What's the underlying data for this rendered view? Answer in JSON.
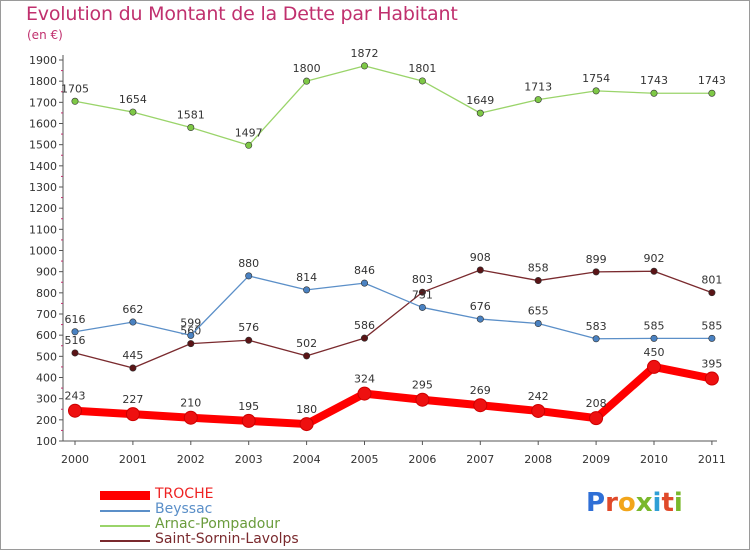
{
  "header": {
    "title": "Evolution du Montant de la Dette par Habitant",
    "subtitle": "(en €)"
  },
  "logo": {
    "letters": [
      "P",
      "r",
      "o",
      "x",
      "i",
      "t",
      "i"
    ],
    "colors": [
      "#2f6fd6",
      "#e04a2a",
      "#f2a51a",
      "#7ab82c",
      "#2f9fd6",
      "#e04a2a",
      "#7ab82c"
    ]
  },
  "chart_data": {
    "type": "line",
    "title": "Evolution du Montant de la Dette par Habitant",
    "ylabel": "(en €)",
    "xlabel": "",
    "x": [
      "2000",
      "2001",
      "2002",
      "2003",
      "2004",
      "2005",
      "2006",
      "2007",
      "2008",
      "2009",
      "2010",
      "2011"
    ],
    "ylim": [
      100,
      1900
    ],
    "yticks": [
      100,
      200,
      300,
      400,
      500,
      600,
      700,
      800,
      900,
      1000,
      1100,
      1200,
      1300,
      1400,
      1500,
      1600,
      1700,
      1800,
      1900
    ],
    "grid": false,
    "legend_position": "bottom-left",
    "series": [
      {
        "name": "Saint-Sornin-Lavolps",
        "color": "#7a2a2e",
        "marker": "#5a1416",
        "values": [
          516,
          445,
          560,
          576,
          502,
          586,
          803,
          908,
          858,
          899,
          902,
          801
        ],
        "labels": [
          "516",
          "445",
          "560",
          "576",
          "502",
          "586",
          "803",
          "908",
          "858",
          "899",
          "902",
          "801"
        ]
      },
      {
        "name": "Beyssac",
        "color": "#5b8fc8",
        "marker": "#4a82c2",
        "values": [
          616,
          662,
          599,
          880,
          814,
          846,
          731,
          676,
          655,
          583,
          585,
          585
        ],
        "labels": [
          "616",
          "662",
          "599",
          "880",
          "814",
          "846",
          "731",
          "676",
          "655",
          "583",
          "585",
          "585"
        ]
      },
      {
        "name": "Arnac-Pompadour",
        "color": "#9ad46a",
        "marker": "#7ec846",
        "values": [
          1705,
          1654,
          1581,
          1497,
          1800,
          1872,
          1801,
          1649,
          1713,
          1754,
          1743,
          1743
        ],
        "labels": [
          "1705",
          "1654",
          "1581",
          "1497",
          "1800",
          "1872",
          "1801",
          "1649",
          "1713",
          "1754",
          "1743",
          "1743"
        ]
      },
      {
        "name": "TROCHE",
        "color": "#ff0000",
        "marker": "#ee1010",
        "values": [
          243,
          227,
          210,
          195,
          180,
          324,
          295,
          269,
          242,
          208,
          450,
          395
        ],
        "labels": [
          "243",
          "227",
          "210",
          "195",
          "180",
          "324",
          "295",
          "269",
          "242",
          "208",
          "450",
          "395"
        ]
      }
    ],
    "legend": [
      {
        "name": "TROCHE",
        "color": "#ff0000",
        "thick": true
      },
      {
        "name": "Beyssac",
        "color": "#5b8fc8",
        "thick": false
      },
      {
        "name": "Arnac-Pompadour",
        "color": "#9ad46a",
        "thick": false
      },
      {
        "name": "Saint-Sornin-Lavolps",
        "color": "#7a2a2e",
        "thick": false
      }
    ]
  }
}
